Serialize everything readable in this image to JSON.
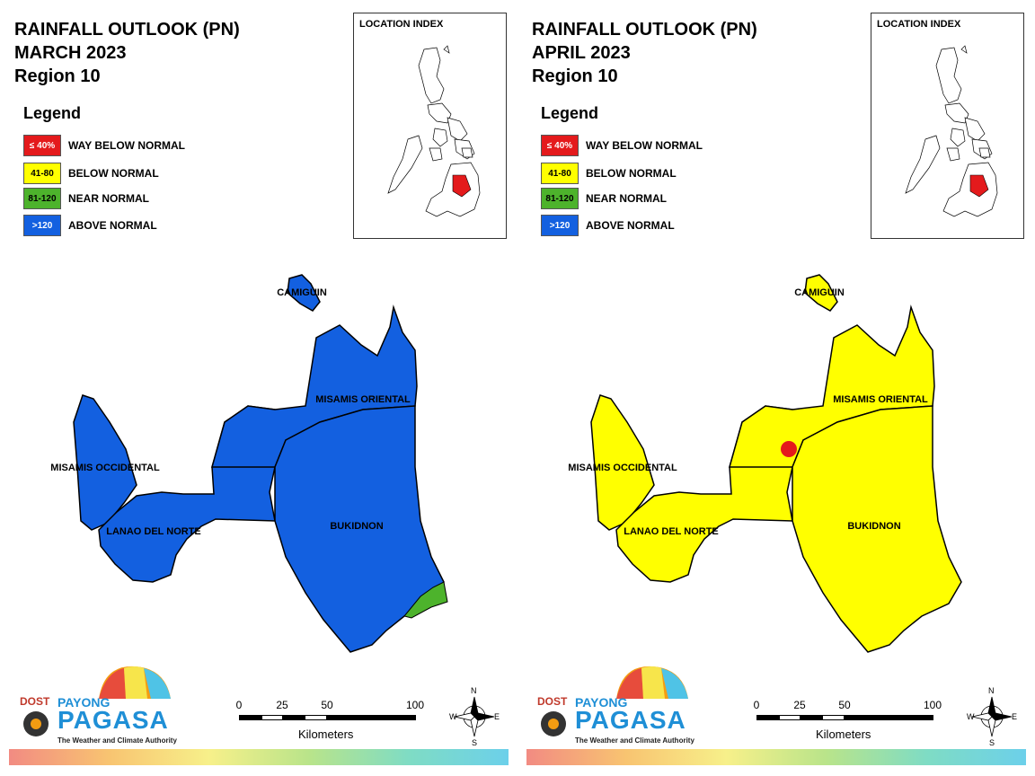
{
  "colors": {
    "way_below": "#e41a1c",
    "below": "#ffff00",
    "near": "#4db32c",
    "above": "#1360e0"
  },
  "legend": {
    "title": "Legend",
    "items": [
      {
        "code": "≤ 40%",
        "label": "WAY BELOW NORMAL",
        "color": "#e41a1c"
      },
      {
        "code": "41-80",
        "label": "BELOW NORMAL",
        "color": "#ffff00"
      },
      {
        "code": "81-120",
        "label": "NEAR NORMAL",
        "color": "#4db32c"
      },
      {
        "code": ">120",
        "label": "ABOVE NORMAL",
        "color": "#1360e0"
      }
    ]
  },
  "location_index": {
    "title": "LOCATION INDEX"
  },
  "province_labels": {
    "camiguin": "CAMIGUIN",
    "misamis_oriental": "MISAMIS ORIENTAL",
    "misamis_occidental": "MISAMIS OCCIDENTAL",
    "lanao_del_norte": "LANAO DEL NORTE",
    "bukidnon": "BUKIDNON"
  },
  "maps": [
    {
      "title_line1": "RAINFALL OUTLOOK (PN)",
      "title_line2": "MARCH 2023",
      "title_line3": "Region 10",
      "fill": "above",
      "patch": "near",
      "patch_location": "southeast corner of Bukidnon"
    },
    {
      "title_line1": "RAINFALL OUTLOOK (PN)",
      "title_line2": "APRIL 2023",
      "title_line3": "Region 10",
      "fill": "below",
      "patch": "way_below",
      "patch_location": "Lanao del Norte, near Iligan area"
    }
  ],
  "scale_bar": {
    "ticks": [
      "0",
      "25",
      "50",
      "100"
    ],
    "unit": "Kilometers"
  },
  "compass": {
    "n": "N",
    "s": "S",
    "e": "E",
    "w": "W"
  },
  "logo": {
    "dost": "DOST",
    "payong": "PAYONG",
    "pagasa": "PAGASA",
    "tagline": "The Weather and Climate Authority"
  }
}
